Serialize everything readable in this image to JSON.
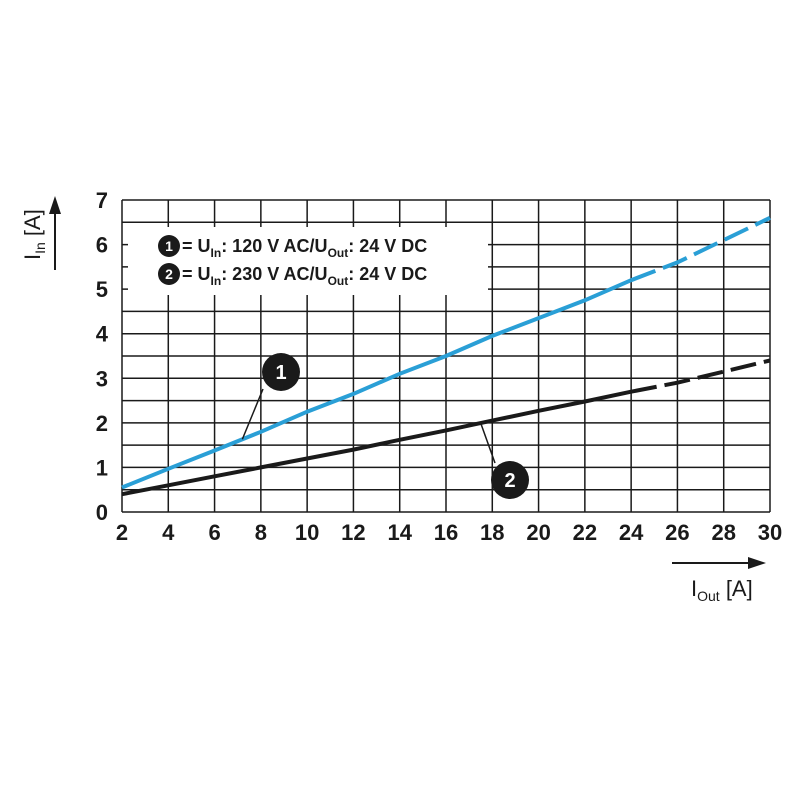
{
  "chart_data": {
    "type": "line",
    "xlabel": {
      "main": "I",
      "sub": "Out",
      "unit": "[A]"
    },
    "ylabel": {
      "main": "I",
      "sub": "In",
      "unit": "[A]"
    },
    "xlim": [
      2,
      30
    ],
    "ylim": [
      0,
      7
    ],
    "xticks": [
      "2",
      "4",
      "6",
      "8",
      "10",
      "12",
      "14",
      "16",
      "18",
      "20",
      "22",
      "24",
      "26",
      "28",
      "30"
    ],
    "yticks": [
      "0",
      "1",
      "2",
      "3",
      "4",
      "5",
      "6",
      "7"
    ],
    "grid": true,
    "legend": [
      {
        "marker": "1",
        "eq": " = U",
        "sub1": "In",
        "mid": ": 120 V AC/U",
        "sub2": "Out",
        "end": ": 24 V DC"
      },
      {
        "marker": "2",
        "eq": " = U",
        "sub1": "In",
        "mid": ": 230 V AC/U",
        "sub2": "Out",
        "end": ": 24 V DC"
      }
    ],
    "series": [
      {
        "marker": "1",
        "color": "#2a9fd6",
        "solid": [
          [
            2,
            0.55
          ],
          [
            4,
            0.97
          ],
          [
            6,
            1.38
          ],
          [
            8,
            1.8
          ],
          [
            10,
            2.25
          ],
          [
            12,
            2.65
          ],
          [
            14,
            3.1
          ],
          [
            16,
            3.5
          ],
          [
            18,
            3.95
          ],
          [
            20,
            4.35
          ],
          [
            22,
            4.75
          ],
          [
            24,
            5.2
          ]
        ],
        "dashed": [
          [
            24,
            5.2
          ],
          [
            26,
            5.6
          ],
          [
            28,
            6.1
          ],
          [
            30,
            6.6
          ]
        ]
      },
      {
        "marker": "2",
        "color": "#1a1a1a",
        "solid": [
          [
            2,
            0.4
          ],
          [
            4,
            0.6
          ],
          [
            6,
            0.8
          ],
          [
            8,
            1.0
          ],
          [
            10,
            1.2
          ],
          [
            12,
            1.4
          ],
          [
            14,
            1.62
          ],
          [
            16,
            1.83
          ],
          [
            18,
            2.05
          ],
          [
            20,
            2.27
          ],
          [
            22,
            2.48
          ],
          [
            24,
            2.7
          ]
        ],
        "dashed": [
          [
            24,
            2.7
          ],
          [
            26,
            2.9
          ],
          [
            28,
            3.15
          ],
          [
            30,
            3.4
          ]
        ]
      }
    ],
    "annotations": [
      {
        "label": "1",
        "series": "1"
      },
      {
        "label": "2",
        "series": "2"
      }
    ]
  }
}
